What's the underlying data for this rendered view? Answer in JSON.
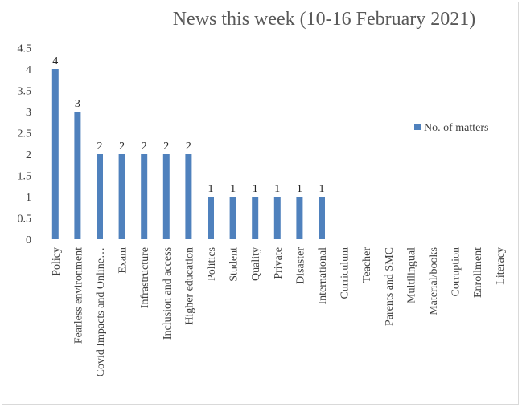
{
  "chart_data": {
    "type": "bar",
    "title": "News this week (10-16 February 2021)",
    "categories": [
      "Policy",
      "Fearless environment",
      "Covid Impacts and Online…",
      "Exam",
      "Infrastructure",
      "Inclusion and access",
      "Higher education",
      "Politics",
      "Student",
      "Quality",
      "Private",
      "Disaster",
      "International",
      "Curriculum",
      "Teacher",
      "Parents and SMC",
      "Multilingual",
      "Material/books",
      "Corruption",
      "Enrollment",
      "Literacy"
    ],
    "series": [
      {
        "name": "No. of matters",
        "values": [
          4,
          3,
          2,
          2,
          2,
          2,
          2,
          1,
          1,
          1,
          1,
          1,
          1,
          0,
          0,
          0,
          0,
          0,
          0,
          0,
          0
        ],
        "color": "#4f81bd"
      }
    ],
    "data_labels": [
      "4",
      "3",
      "2",
      "2",
      "2",
      "2",
      "2",
      "1",
      "1",
      "1",
      "1",
      "1",
      "1",
      "",
      "",
      "",
      "",
      "",
      "",
      "",
      ""
    ],
    "y_ticks": [
      "0",
      "0.5",
      "1",
      "1.5",
      "2",
      "2.5",
      "3",
      "3.5",
      "4",
      "4.5"
    ],
    "ylim": [
      0,
      4.5
    ],
    "xlabel": "",
    "ylabel": "",
    "grid": false,
    "legend": "right"
  }
}
